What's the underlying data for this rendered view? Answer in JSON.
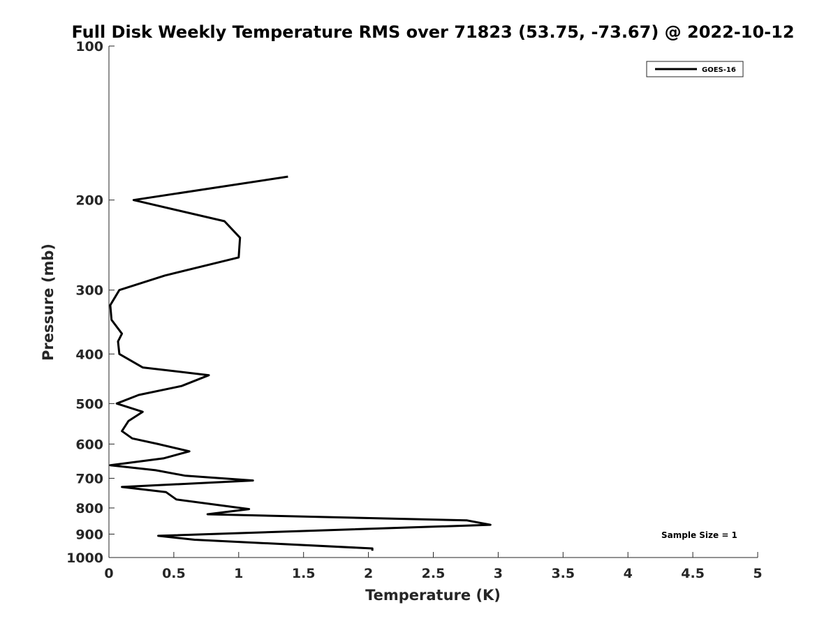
{
  "chart_data": {
    "type": "line",
    "title": "Full Disk Weekly Temperature RMS over 71823 (53.75, -73.67) @ 2022-10-12",
    "xlabel": "Temperature (K)",
    "ylabel": "Pressure (mb)",
    "xlim": [
      0,
      5
    ],
    "ylim": [
      100,
      1000
    ],
    "y_scale": "log",
    "y_reversed": true,
    "grid": false,
    "legend_position": "top-right",
    "x_ticks": [
      "0",
      "0.5",
      "1",
      "1.5",
      "2",
      "2.5",
      "3",
      "3.5",
      "4",
      "4.5",
      "5"
    ],
    "y_ticks": [
      "100",
      "200",
      "300",
      "400",
      "500",
      "600",
      "700",
      "800",
      "900",
      "1000"
    ],
    "series": [
      {
        "name": "GOES-16",
        "color": "#000000",
        "points": [
          {
            "x": 1.38,
            "p": 180
          },
          {
            "x": 0.19,
            "p": 200
          },
          {
            "x": 0.89,
            "p": 220
          },
          {
            "x": 1.01,
            "p": 237
          },
          {
            "x": 1.0,
            "p": 259
          },
          {
            "x": 0.43,
            "p": 281
          },
          {
            "x": 0.08,
            "p": 300
          },
          {
            "x": 0.01,
            "p": 321
          },
          {
            "x": 0.02,
            "p": 343
          },
          {
            "x": 0.1,
            "p": 365
          },
          {
            "x": 0.07,
            "p": 378
          },
          {
            "x": 0.08,
            "p": 400
          },
          {
            "x": 0.26,
            "p": 425
          },
          {
            "x": 0.77,
            "p": 440
          },
          {
            "x": 0.56,
            "p": 462
          },
          {
            "x": 0.23,
            "p": 481
          },
          {
            "x": 0.06,
            "p": 500
          },
          {
            "x": 0.26,
            "p": 519
          },
          {
            "x": 0.15,
            "p": 541
          },
          {
            "x": 0.1,
            "p": 566
          },
          {
            "x": 0.18,
            "p": 585
          },
          {
            "x": 0.38,
            "p": 600
          },
          {
            "x": 0.62,
            "p": 620
          },
          {
            "x": 0.42,
            "p": 640
          },
          {
            "x": 0.01,
            "p": 660
          },
          {
            "x": 0.36,
            "p": 675
          },
          {
            "x": 0.59,
            "p": 692
          },
          {
            "x": 1.11,
            "p": 707
          },
          {
            "x": 0.1,
            "p": 728
          },
          {
            "x": 0.44,
            "p": 745
          },
          {
            "x": 0.52,
            "p": 770
          },
          {
            "x": 1.08,
            "p": 804
          },
          {
            "x": 0.76,
            "p": 823
          },
          {
            "x": 2.76,
            "p": 846
          },
          {
            "x": 2.94,
            "p": 863
          },
          {
            "x": 0.38,
            "p": 907
          },
          {
            "x": 0.66,
            "p": 923
          },
          {
            "x": 2.03,
            "p": 960
          },
          {
            "x": 2.03,
            "p": 970
          }
        ]
      }
    ],
    "annotation": "Sample Size = 1"
  }
}
